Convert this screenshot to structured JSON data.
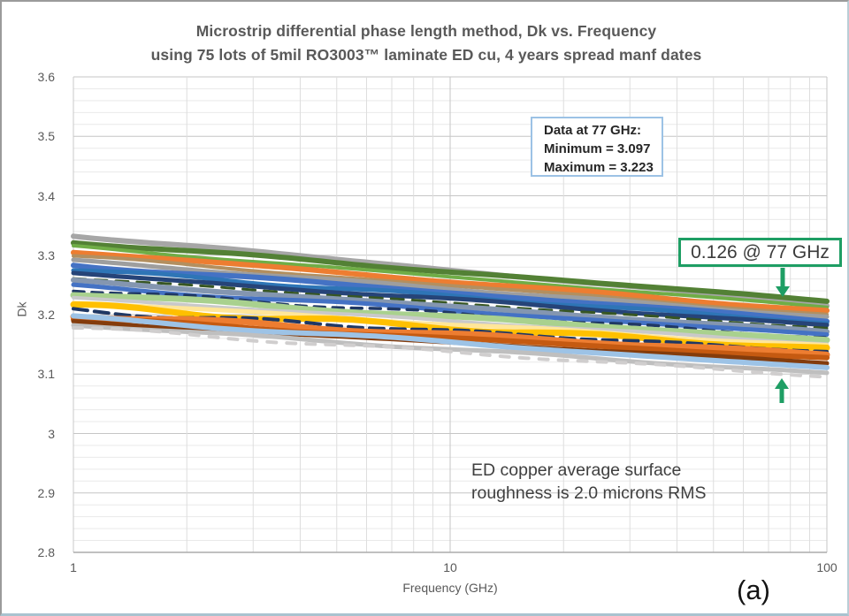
{
  "title": {
    "line1": "Microstrip differential phase length method, Dk vs. Frequency",
    "line2": "using 75 lots of 5mil RO3003™ laminate ED cu, 4 years spread manf dates"
  },
  "figure_label": "(a)",
  "axes": {
    "y": {
      "label": "Dk",
      "ticks": [
        "3.6",
        "3.5",
        "3.4",
        "3.3",
        "3.2",
        "3.1",
        "3",
        "2.9",
        "2.8"
      ]
    },
    "x": {
      "label": "Frequency (GHz)",
      "ticks": [
        {
          "label": "1",
          "value": 1
        },
        {
          "label": "10",
          "value": 10
        },
        {
          "label": "100",
          "value": 100
        }
      ]
    }
  },
  "annotations": {
    "data_box": {
      "line1": "Data at 77 GHz:",
      "line2": "Minimum  = 3.097",
      "line3": "Maximum  = 3.223",
      "border_color": "#9cc2e5"
    },
    "delta_box": {
      "text": "0.126 @ 77 GHz",
      "border_color": "#1e9e64",
      "arrow_color": "#1e9e64"
    },
    "roughness_note": {
      "line1": "ED copper average surface",
      "line2": "roughness is 2.0 microns RMS"
    }
  },
  "chart_data": {
    "type": "line",
    "title": "Microstrip differential phase length method, Dk vs. Frequency using 75 lots of 5mil RO3003 laminate ED cu, 4 years spread manf dates",
    "xlabel": "Frequency (GHz)",
    "ylabel": "Dk",
    "x_scale": "log",
    "xlim": [
      1,
      100
    ],
    "ylim": [
      2.8,
      3.6
    ],
    "y_major_step": 0.1,
    "y_minor_step": 0.02,
    "grid": "major+minor",
    "legend": "none",
    "num_lots": 75,
    "stats_at_77GHz": {
      "minimum": 3.097,
      "maximum": 3.223,
      "spread": 0.126
    },
    "envelope": {
      "dk_at_1GHz": [
        3.178,
        3.334
      ],
      "dk_at_100GHz": [
        3.096,
        3.223
      ]
    },
    "series": [
      {
        "color": "#a6a6a6",
        "dk_at_1GHz": 3.334,
        "dk_at_100GHz": 3.216,
        "width": 6,
        "amp": 1.2,
        "freq": 2.2,
        "phase": 0.5
      },
      {
        "color": "#538135",
        "dk_at_1GHz": 3.322,
        "dk_at_100GHz": 3.223,
        "width": 6,
        "amp": 1.0,
        "freq": 1.8,
        "phase": 2.1
      },
      {
        "color": "#70ad47",
        "dk_at_1GHz": 3.314,
        "dk_at_100GHz": 3.213,
        "width": 4,
        "amp": 1.2,
        "freq": 2.6,
        "phase": 4.0
      },
      {
        "color": "#ed7d31",
        "dk_at_1GHz": 3.306,
        "dk_at_100GHz": 3.206,
        "width": 6,
        "amp": 1.5,
        "freq": 2.4,
        "phase": 1.2
      },
      {
        "color": "#b38f5f",
        "dk_at_1GHz": 3.298,
        "dk_at_100GHz": 3.2,
        "width": 4,
        "amp": 1.3,
        "freq": 2.0,
        "phase": 3.3
      },
      {
        "color": "#9e9e9e",
        "dk_at_1GHz": 3.291,
        "dk_at_100GHz": 3.196,
        "width": 5,
        "amp": 1.2,
        "freq": 2.8,
        "phase": 5.1
      },
      {
        "color": "#4472c4",
        "dk_at_1GHz": 3.284,
        "dk_at_100GHz": 3.19,
        "width": 6,
        "amp": 1.4,
        "freq": 2.2,
        "phase": 0.2
      },
      {
        "color": "#2e75b6",
        "dk_at_1GHz": 3.276,
        "dk_at_100GHz": 3.186,
        "width": 5,
        "amp": 1.3,
        "freq": 3.0,
        "phase": 2.8
      },
      {
        "color": "#264478",
        "dk_at_1GHz": 3.269,
        "dk_at_100GHz": 3.182,
        "width": 5,
        "amp": 1.2,
        "freq": 2.0,
        "phase": 4.4
      },
      {
        "color": "#375623",
        "dk_at_1GHz": 3.262,
        "dk_at_100GHz": 3.177,
        "width": 3,
        "amp": 1.5,
        "freq": 3.2,
        "phase": 1.7,
        "dash": "14 10"
      },
      {
        "color": "#8496b0",
        "dk_at_1GHz": 3.256,
        "dk_at_100GHz": 3.171,
        "width": 6,
        "amp": 1.2,
        "freq": 2.4,
        "phase": 3.9
      },
      {
        "color": "#4472c4",
        "dk_at_1GHz": 3.248,
        "dk_at_100GHz": 3.166,
        "width": 5,
        "amp": 1.4,
        "freq": 2.1,
        "phase": 5.6
      },
      {
        "color": "#203864",
        "dk_at_1GHz": 3.242,
        "dk_at_100GHz": 3.161,
        "width": 3.5,
        "amp": 1.8,
        "freq": 3.4,
        "phase": 0.9,
        "dash": "12 9"
      },
      {
        "color": "#a9d18e",
        "dk_at_1GHz": 3.235,
        "dk_at_100GHz": 3.157,
        "width": 7,
        "amp": 1.3,
        "freq": 2.3,
        "phase": 2.5
      },
      {
        "color": "#c9c9c9",
        "dk_at_1GHz": 3.228,
        "dk_at_100GHz": 3.151,
        "width": 4,
        "amp": 1.2,
        "freq": 2.7,
        "phase": 4.8
      },
      {
        "color": "#ffe699",
        "dk_at_1GHz": 3.221,
        "dk_at_100GHz": 3.147,
        "width": 5,
        "amp": 1.6,
        "freq": 2.5,
        "phase": 1.4
      },
      {
        "color": "#ffc000",
        "dk_at_1GHz": 3.214,
        "dk_at_100GHz": 3.142,
        "width": 7,
        "amp": 2.8,
        "freq": 3.1,
        "phase": 3.6
      },
      {
        "color": "#1f3864",
        "dk_at_1GHz": 3.207,
        "dk_at_100GHz": 3.138,
        "width": 4,
        "amp": 2.6,
        "freq": 3.5,
        "phase": 5.8,
        "dash": "16 8"
      },
      {
        "color": "#ed7d31",
        "dk_at_1GHz": 3.2,
        "dk_at_100GHz": 3.133,
        "width": 7,
        "amp": 2.4,
        "freq": 2.9,
        "phase": 0.7
      },
      {
        "color": "#c55a11",
        "dk_at_1GHz": 3.193,
        "dk_at_100GHz": 3.127,
        "width": 6,
        "amp": 1.6,
        "freq": 2.2,
        "phase": 2.9
      },
      {
        "color": "#843c0c",
        "dk_at_1GHz": 3.187,
        "dk_at_100GHz": 3.119,
        "width": 5,
        "amp": 1.3,
        "freq": 2.6,
        "phase": 4.2
      },
      {
        "color": "#9dc3e6",
        "dk_at_1GHz": 3.196,
        "dk_at_100GHz": 3.11,
        "width": 6,
        "amp": 1.4,
        "freq": 2.0,
        "phase": 5.3
      },
      {
        "color": "#bfbfbf",
        "dk_at_1GHz": 3.183,
        "dk_at_100GHz": 3.101,
        "width": 5,
        "amp": 1.2,
        "freq": 2.4,
        "phase": 1.9
      },
      {
        "color": "#d0cece",
        "dk_at_1GHz": 3.178,
        "dk_at_100GHz": 3.096,
        "width": 4,
        "amp": 1.4,
        "freq": 2.8,
        "phase": 3.1,
        "dash": "10 12"
      }
    ]
  }
}
